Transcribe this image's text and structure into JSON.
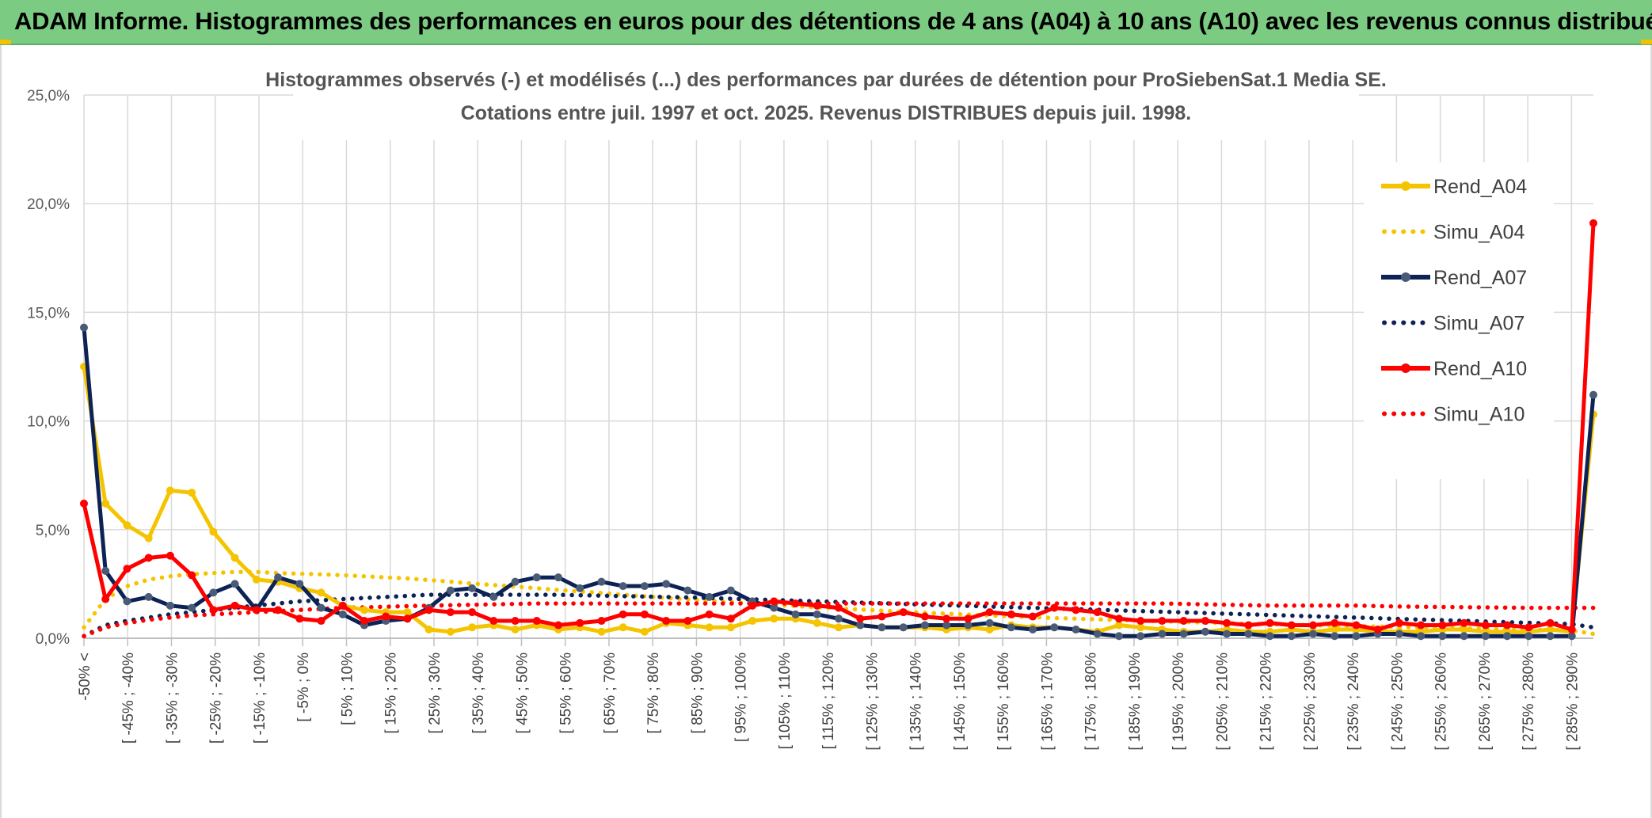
{
  "header": {
    "title": "ADAM Informe. Histogrammes des performances en euros pour des détentions de 4 ans (A04) à 10 ans (A10) avec les revenus connus distribués"
  },
  "chart_data": {
    "type": "line",
    "title": "Histogrammes observés (-) et modélisés (...) des performances par durées de détention pour ProSiebenSat.1 Media SE.",
    "subtitle": "Cotations entre juil. 1997 et oct. 2025. Revenus DISTRIBUES depuis juil. 1998.",
    "ylim": [
      0,
      25
    ],
    "yticks": [
      "0,0%",
      "5,0%",
      "10,0%",
      "15,0%",
      "20,0%",
      "25,0%"
    ],
    "grid": true,
    "legend_position": "right",
    "x_labels": [
      "-50% <",
      "[ -45% ; -40%",
      "[ -35% ; -30%",
      "[ -25% ; -20%",
      "[ -15% ; -10%",
      "[ -5% ; 0%",
      "[ 5% ; 10%",
      "[ 15% ; 20%",
      "[ 25% ; 30%",
      "[ 35% ; 40%",
      "[ 45% ; 50%",
      "[ 55% ; 60%",
      "[ 65% ; 70%",
      "[ 75% ; 80%",
      "[ 85% ; 90%",
      "[ 95% ; 100%",
      "[ 105% ; 110%",
      "[ 115% ; 120%",
      "[ 125% ; 130%",
      "[ 135% ; 140%",
      "[ 145% ; 150%",
      "[ 155% ; 160%",
      "[ 165% ; 170%",
      "[ 175% ; 180%",
      "[ 185% ; 190%",
      "[ 195% ; 200%",
      "[ 205% ; 210%",
      "[ 215% ; 220%",
      "[ 225% ; 230%",
      "[ 235% ; 240%",
      "[ 245% ; 250%",
      "[ 255% ; 260%",
      "[ 265% ; 270%",
      "[ 275% ; 280%",
      "[ 285% ; 290%"
    ],
    "series": [
      {
        "name": "Rend_A04",
        "style": "solid",
        "color": "#f5c400",
        "values": [
          12.5,
          6.2,
          5.2,
          4.6,
          6.8,
          6.7,
          4.9,
          3.7,
          2.7,
          2.6,
          2.3,
          2.1,
          1.5,
          1.3,
          1.2,
          1.2,
          0.4,
          0.3,
          0.5,
          0.6,
          0.4,
          0.6,
          0.4,
          0.5,
          0.3,
          0.5,
          0.3,
          0.7,
          0.6,
          0.5,
          0.5,
          0.8,
          0.9,
          0.9,
          0.7,
          0.5,
          0.6,
          0.5,
          0.5,
          0.5,
          0.4,
          0.5,
          0.4,
          0.6,
          0.5,
          0.5,
          0.4,
          0.3,
          0.6,
          0.5,
          0.4,
          0.3,
          0.3,
          0.4,
          0.3,
          0.3,
          0.4,
          0.3,
          0.4,
          0.4,
          0.3,
          0.3,
          0.3,
          0.4,
          0.4,
          0.3,
          0.3,
          0.3,
          0.4,
          0.3,
          10.3
        ]
      },
      {
        "name": "Simu_A04",
        "style": "dotted",
        "color": "#f5c400",
        "values": [
          0.5,
          1.8,
          2.4,
          2.7,
          2.85,
          2.95,
          3.0,
          3.05,
          3.05,
          3.0,
          2.97,
          2.94,
          2.9,
          2.85,
          2.8,
          2.75,
          2.68,
          2.6,
          2.52,
          2.45,
          2.38,
          2.3,
          2.22,
          2.15,
          2.08,
          2.0,
          1.93,
          1.86,
          1.79,
          1.72,
          1.66,
          1.6,
          1.54,
          1.48,
          1.42,
          1.37,
          1.32,
          1.27,
          1.22,
          1.17,
          1.13,
          1.09,
          1.05,
          1.01,
          0.97,
          0.93,
          0.9,
          0.87,
          0.84,
          0.81,
          0.78,
          0.75,
          0.72,
          0.7,
          0.67,
          0.65,
          0.62,
          0.6,
          0.58,
          0.56,
          0.54,
          0.52,
          0.5,
          0.48,
          0.46,
          0.44,
          0.42,
          0.4,
          0.38,
          0.36,
          0.2
        ]
      },
      {
        "name": "Rend_A07",
        "style": "solid",
        "color": "#0d2356",
        "values": [
          14.3,
          3.1,
          1.7,
          1.9,
          1.5,
          1.4,
          2.1,
          2.5,
          1.3,
          2.8,
          2.5,
          1.4,
          1.1,
          0.6,
          0.8,
          0.9,
          1.4,
          2.2,
          2.3,
          1.9,
          2.6,
          2.8,
          2.8,
          2.3,
          2.6,
          2.4,
          2.4,
          2.5,
          2.2,
          1.9,
          2.2,
          1.7,
          1.4,
          1.1,
          1.1,
          0.9,
          0.6,
          0.5,
          0.5,
          0.6,
          0.6,
          0.6,
          0.7,
          0.5,
          0.4,
          0.5,
          0.4,
          0.2,
          0.1,
          0.1,
          0.2,
          0.2,
          0.3,
          0.2,
          0.2,
          0.1,
          0.1,
          0.2,
          0.1,
          0.1,
          0.2,
          0.2,
          0.1,
          0.1,
          0.1,
          0.1,
          0.1,
          0.1,
          0.1,
          0.1,
          11.2
        ]
      },
      {
        "name": "Simu_A07",
        "style": "dotted",
        "color": "#0d2356",
        "values": [
          0.1,
          0.6,
          0.8,
          0.95,
          1.1,
          1.2,
          1.3,
          1.4,
          1.5,
          1.6,
          1.7,
          1.75,
          1.8,
          1.85,
          1.9,
          1.95,
          2.0,
          2.0,
          2.0,
          2.0,
          2.0,
          2.0,
          2.0,
          1.98,
          1.96,
          1.94,
          1.92,
          1.9,
          1.88,
          1.85,
          1.82,
          1.79,
          1.76,
          1.73,
          1.7,
          1.67,
          1.64,
          1.61,
          1.58,
          1.55,
          1.52,
          1.49,
          1.46,
          1.43,
          1.4,
          1.37,
          1.34,
          1.31,
          1.28,
          1.25,
          1.22,
          1.19,
          1.16,
          1.13,
          1.1,
          1.07,
          1.04,
          1.01,
          0.98,
          0.95,
          0.92,
          0.89,
          0.86,
          0.83,
          0.8,
          0.77,
          0.74,
          0.71,
          0.68,
          0.65,
          0.5
        ]
      },
      {
        "name": "Rend_A10",
        "style": "solid",
        "color": "#ff0000",
        "values": [
          6.2,
          1.8,
          3.2,
          3.7,
          3.8,
          2.9,
          1.3,
          1.5,
          1.3,
          1.3,
          0.9,
          0.8,
          1.5,
          0.8,
          1.0,
          0.9,
          1.3,
          1.2,
          1.2,
          0.8,
          0.8,
          0.8,
          0.6,
          0.7,
          0.8,
          1.1,
          1.1,
          0.8,
          0.8,
          1.1,
          0.9,
          1.5,
          1.7,
          1.6,
          1.5,
          1.4,
          0.9,
          1.0,
          1.2,
          1.0,
          0.9,
          0.9,
          1.2,
          1.1,
          1.0,
          1.4,
          1.3,
          1.2,
          0.9,
          0.8,
          0.8,
          0.8,
          0.8,
          0.7,
          0.6,
          0.7,
          0.6,
          0.6,
          0.7,
          0.6,
          0.4,
          0.7,
          0.6,
          0.6,
          0.7,
          0.6,
          0.6,
          0.5,
          0.7,
          0.4,
          19.1
        ]
      },
      {
        "name": "Simu_A10",
        "style": "dotted",
        "color": "#ff0000",
        "values": [
          0.1,
          0.5,
          0.7,
          0.85,
          0.95,
          1.05,
          1.1,
          1.15,
          1.2,
          1.25,
          1.3,
          1.35,
          1.4,
          1.42,
          1.45,
          1.48,
          1.5,
          1.52,
          1.54,
          1.56,
          1.58,
          1.6,
          1.6,
          1.6,
          1.6,
          1.6,
          1.6,
          1.6,
          1.6,
          1.6,
          1.6,
          1.6,
          1.6,
          1.6,
          1.6,
          1.6,
          1.6,
          1.6,
          1.6,
          1.6,
          1.6,
          1.6,
          1.6,
          1.6,
          1.6,
          1.6,
          1.6,
          1.6,
          1.6,
          1.6,
          1.6,
          1.58,
          1.56,
          1.54,
          1.52,
          1.5,
          1.5,
          1.5,
          1.5,
          1.5,
          1.48,
          1.46,
          1.45,
          1.44,
          1.43,
          1.42,
          1.41,
          1.4,
          1.4,
          1.4,
          1.4
        ]
      }
    ]
  }
}
